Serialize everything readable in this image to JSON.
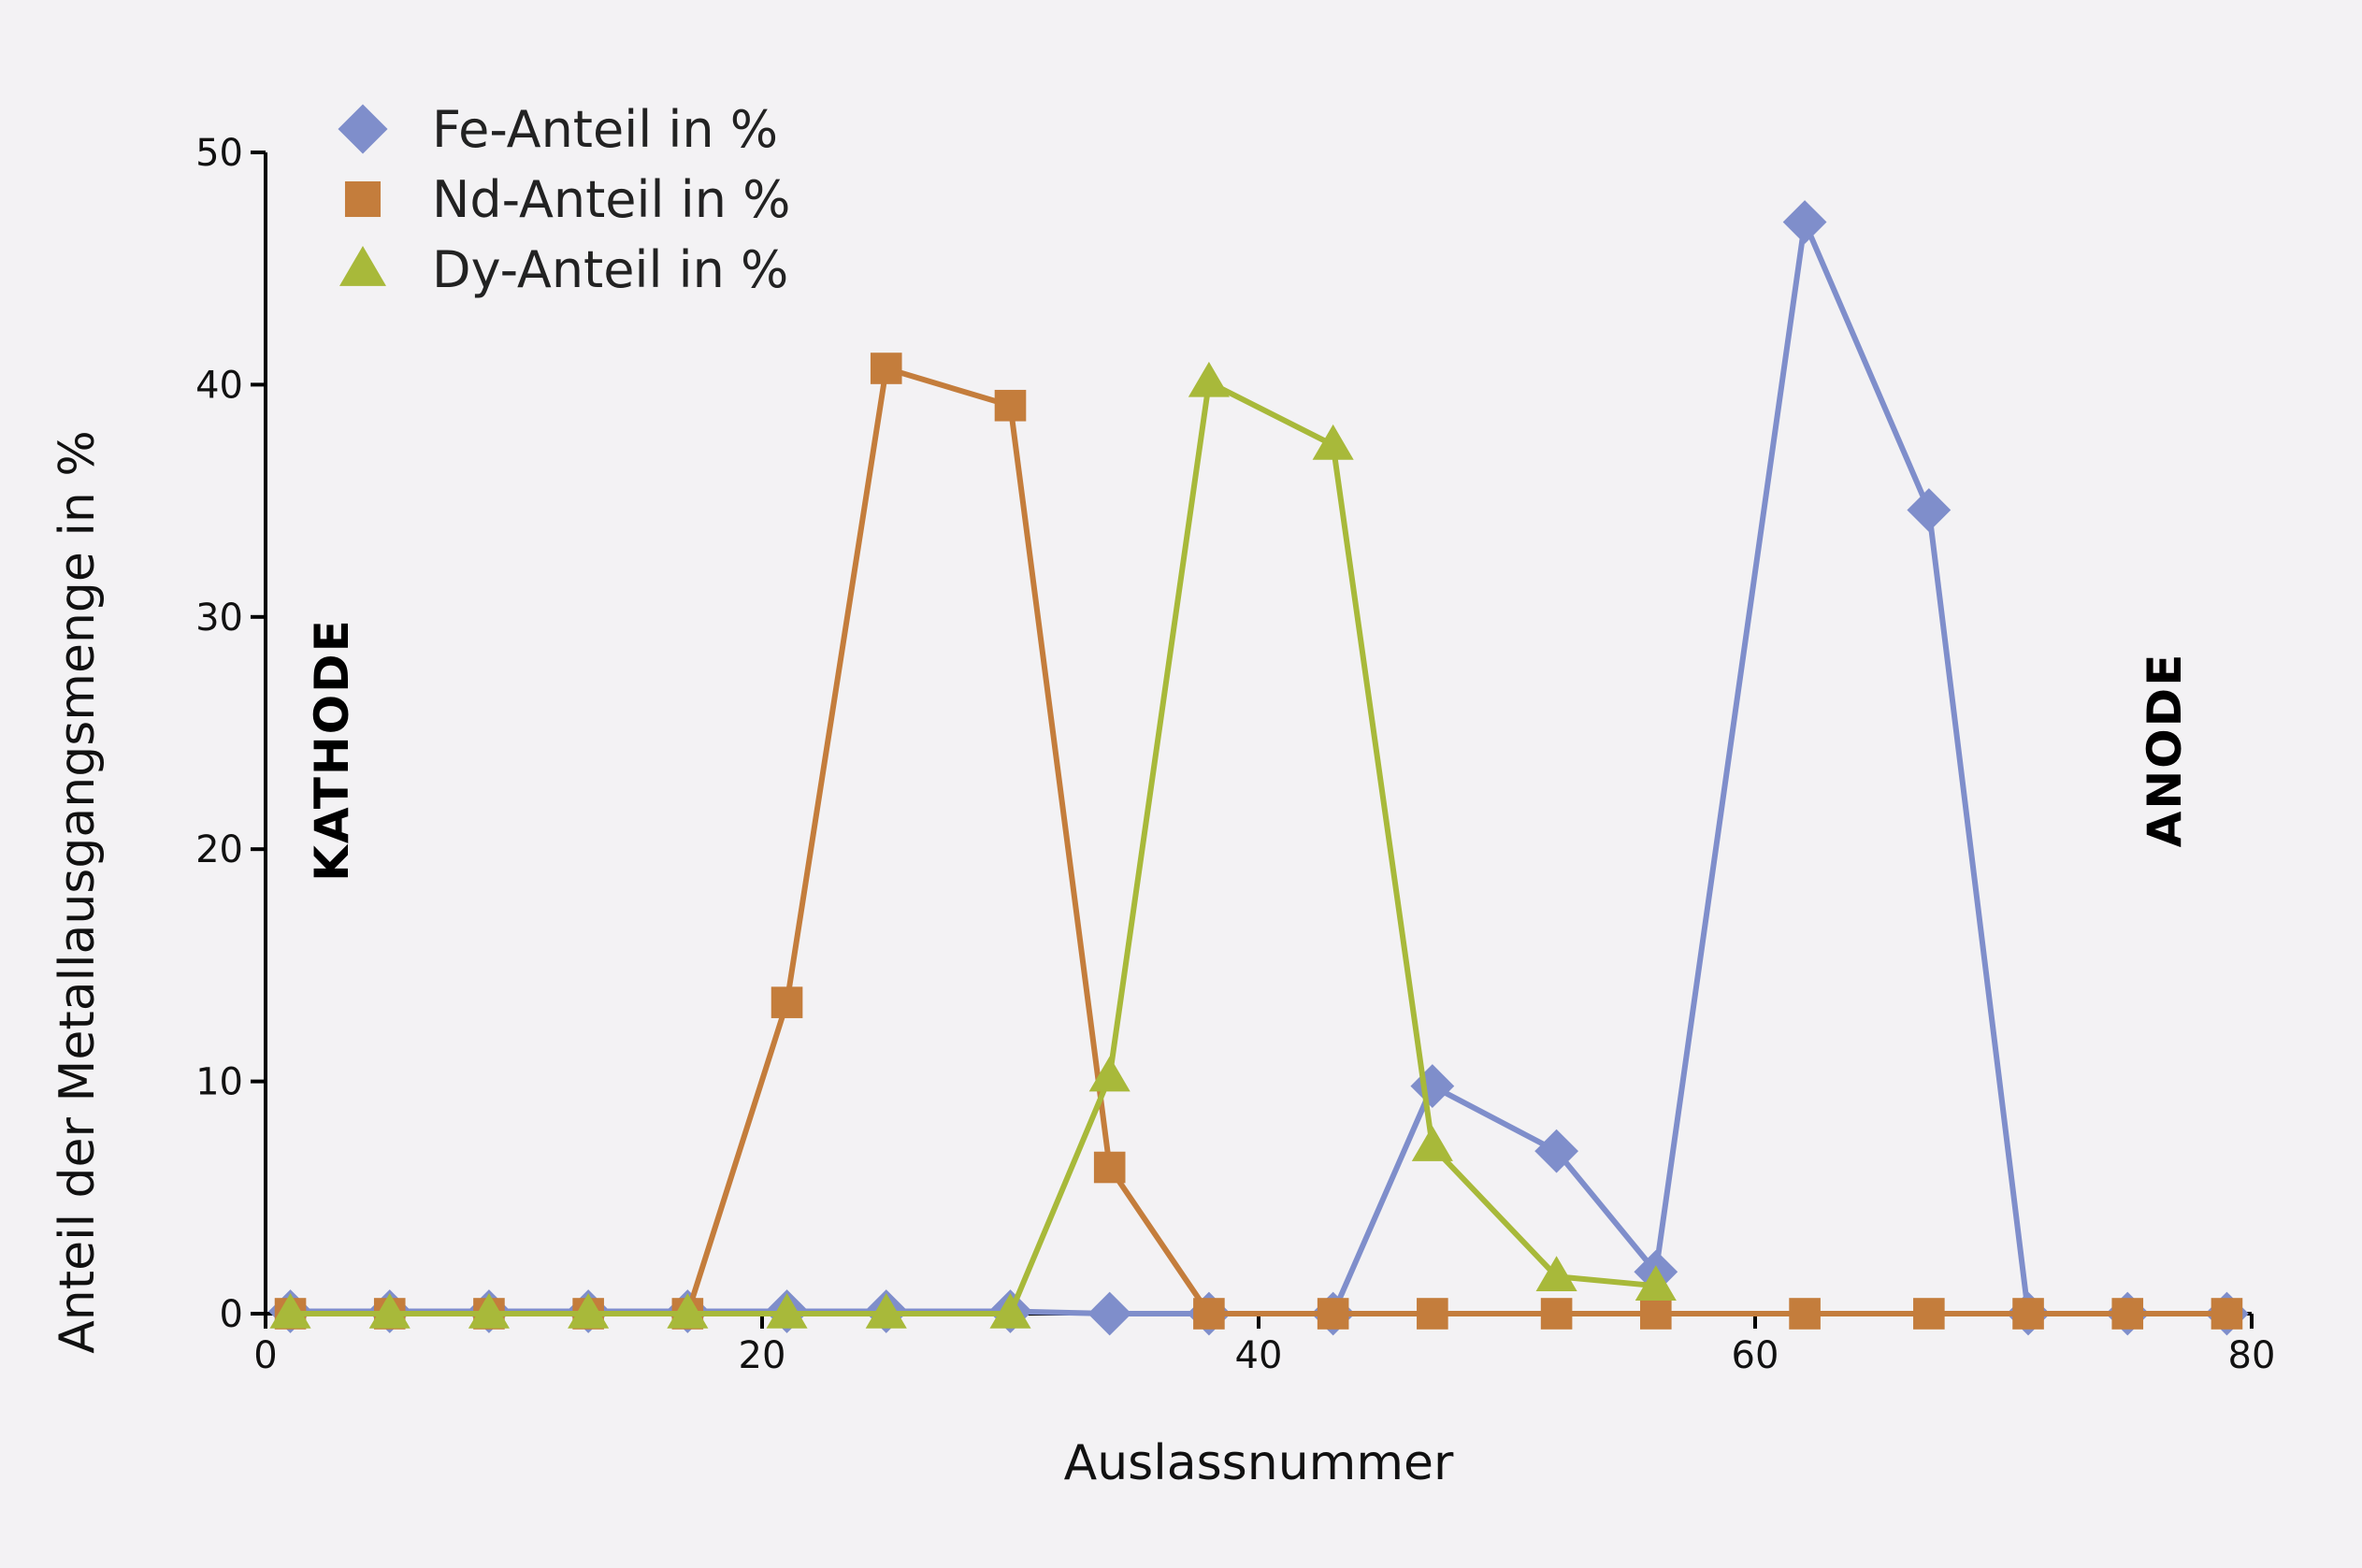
{
  "chart_data": {
    "type": "line",
    "xlabel": "Auslassnummer",
    "ylabel": "Anteil der Metallausgangsmenge in %",
    "xlim": [
      0,
      80
    ],
    "ylim": [
      0,
      50
    ],
    "xticks": [
      0,
      20,
      40,
      60,
      80
    ],
    "yticks": [
      0,
      10,
      20,
      30,
      40,
      50
    ],
    "grid": false,
    "legend_position": "top-left",
    "annotations": [
      {
        "text": "KATHODE",
        "x": 3.5,
        "y": 25
      },
      {
        "text": "ANODE",
        "x": 77,
        "y": 25
      }
    ],
    "series": [
      {
        "name": "Fe-Anteil in %",
        "color": "#7f8ecb",
        "marker": "diamond",
        "points": [
          [
            1,
            0.1
          ],
          [
            5,
            0.1
          ],
          [
            9,
            0.1
          ],
          [
            13,
            0.1
          ],
          [
            17,
            0.1
          ],
          [
            21,
            0.1
          ],
          [
            25,
            0.1
          ],
          [
            30,
            0.1
          ],
          [
            34,
            0
          ],
          [
            38,
            0
          ],
          [
            43,
            0
          ],
          [
            47,
            9.8
          ],
          [
            52,
            7
          ],
          [
            56,
            1.8
          ],
          [
            62,
            47
          ],
          [
            67,
            34.6
          ],
          [
            71,
            0
          ],
          [
            75,
            0
          ],
          [
            79,
            0
          ]
        ]
      },
      {
        "name": "Nd-Anteil in %",
        "color": "#c47d3c",
        "marker": "square",
        "points": [
          [
            1,
            0
          ],
          [
            5,
            0
          ],
          [
            9,
            0
          ],
          [
            13,
            0
          ],
          [
            17,
            0
          ],
          [
            21,
            13.4
          ],
          [
            25,
            40.7
          ],
          [
            30,
            39.1
          ],
          [
            34,
            6.3
          ],
          [
            38,
            0
          ],
          [
            43,
            0
          ],
          [
            47,
            0
          ],
          [
            52,
            0
          ],
          [
            56,
            0
          ],
          [
            62,
            0
          ],
          [
            67,
            0
          ],
          [
            71,
            0
          ],
          [
            75,
            0
          ],
          [
            79,
            0
          ]
        ]
      },
      {
        "name": "Dy-Anteil in %",
        "color": "#a8b93a",
        "marker": "triangle",
        "points": [
          [
            1,
            0
          ],
          [
            5,
            0
          ],
          [
            9,
            0
          ],
          [
            13,
            0
          ],
          [
            17,
            0
          ],
          [
            21,
            0
          ],
          [
            25,
            0
          ],
          [
            30,
            0
          ],
          [
            34,
            10.2
          ],
          [
            38,
            40.1
          ],
          [
            43,
            37.4
          ],
          [
            47,
            7.2
          ],
          [
            52,
            1.6
          ],
          [
            56,
            1.2
          ]
        ]
      }
    ]
  }
}
